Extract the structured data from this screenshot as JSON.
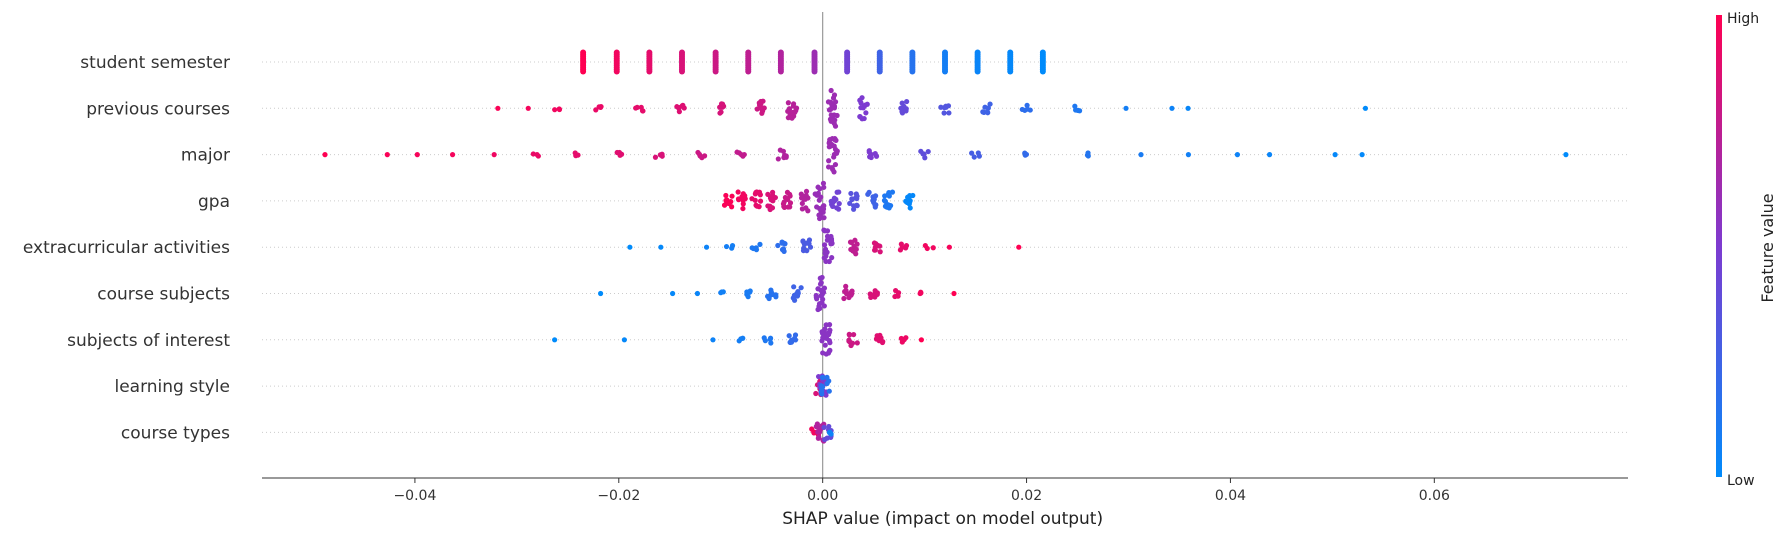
{
  "chart_data": {
    "type": "scatter",
    "subtype": "shap-beeswarm",
    "xlabel": "SHAP value (impact on model output)",
    "xlim": [
      -0.055,
      0.079
    ],
    "xticks": [
      {
        "value": -0.04,
        "label": "−0.04"
      },
      {
        "value": -0.02,
        "label": "−0.02"
      },
      {
        "value": 0.0,
        "label": "0.00"
      },
      {
        "value": 0.02,
        "label": "0.02"
      },
      {
        "value": 0.04,
        "label": "0.04"
      },
      {
        "value": 0.06,
        "label": "0.06"
      }
    ],
    "features": [
      "student semester",
      "previous courses",
      "major",
      "gpa",
      "extracurricular activities",
      "course subjects",
      "subjects of interest",
      "learning style",
      "course types"
    ],
    "colorbar": {
      "title": "Feature value",
      "high_label": "High",
      "low_label": "Low",
      "high_color": "#ff0052",
      "low_color": "#008bfb"
    },
    "colors": {
      "low": "#008bfb",
      "high": "#ff0052",
      "zero_line": "#999999",
      "row_grid": "#cccccc"
    },
    "series": [
      {
        "feature": "student semester",
        "points": [
          {
            "shap": -0.0235,
            "value": 1.0,
            "spread": 0.0
          },
          {
            "shap": -0.0202,
            "value": 0.95,
            "spread": 0.0
          },
          {
            "shap": -0.017,
            "value": 0.9,
            "spread": 0.0
          },
          {
            "shap": -0.0138,
            "value": 0.85,
            "spread": 0.0
          },
          {
            "shap": -0.0105,
            "value": 0.8,
            "spread": 0.0
          },
          {
            "shap": -0.0073,
            "value": 0.75,
            "spread": 0.0
          },
          {
            "shap": -0.0041,
            "value": 0.7,
            "spread": 0.0
          },
          {
            "shap": -0.0008,
            "value": 0.62,
            "spread": 0.0
          },
          {
            "shap": 0.0024,
            "value": 0.45,
            "spread": 0.0
          },
          {
            "shap": 0.0056,
            "value": 0.25,
            "spread": 0.0
          },
          {
            "shap": 0.0088,
            "value": 0.15,
            "spread": 0.0
          },
          {
            "shap": 0.012,
            "value": 0.08,
            "spread": 0.0
          },
          {
            "shap": 0.0152,
            "value": 0.04,
            "spread": 0.0
          },
          {
            "shap": 0.0184,
            "value": 0.02,
            "spread": 0.0
          },
          {
            "shap": 0.0216,
            "value": 0.0,
            "spread": 0.0
          }
        ]
      },
      {
        "feature": "previous courses",
        "points": [
          {
            "shap": -0.032,
            "value": 0.98,
            "spread": 0.0
          },
          {
            "shap": -0.029,
            "value": 0.96,
            "spread": 0.0
          },
          {
            "shap": -0.026,
            "value": 0.95,
            "spread": 0.1
          },
          {
            "shap": -0.022,
            "value": 0.92,
            "spread": 0.15
          },
          {
            "shap": -0.018,
            "value": 0.9,
            "spread": 0.2
          },
          {
            "shap": -0.014,
            "value": 0.87,
            "spread": 0.25
          },
          {
            "shap": -0.01,
            "value": 0.84,
            "spread": 0.3
          },
          {
            "shap": -0.006,
            "value": 0.8,
            "spread": 0.4
          },
          {
            "shap": -0.003,
            "value": 0.72,
            "spread": 0.6
          },
          {
            "shap": 0.001,
            "value": 0.62,
            "spread": 1.0
          },
          {
            "shap": 0.004,
            "value": 0.5,
            "spread": 0.6
          },
          {
            "shap": 0.008,
            "value": 0.4,
            "spread": 0.4
          },
          {
            "shap": 0.012,
            "value": 0.33,
            "spread": 0.3
          },
          {
            "shap": 0.016,
            "value": 0.25,
            "spread": 0.25
          },
          {
            "shap": 0.02,
            "value": 0.18,
            "spread": 0.2
          },
          {
            "shap": 0.025,
            "value": 0.12,
            "spread": 0.15
          },
          {
            "shap": 0.03,
            "value": 0.08,
            "spread": 0.0
          },
          {
            "shap": 0.034,
            "value": 0.05,
            "spread": 0.0
          },
          {
            "shap": 0.036,
            "value": 0.03,
            "spread": 0.0
          },
          {
            "shap": 0.053,
            "value": 0.0,
            "spread": 0.0
          }
        ]
      },
      {
        "feature": "major",
        "points": [
          {
            "shap": -0.049,
            "value": 1.0,
            "spread": 0.0
          },
          {
            "shap": -0.043,
            "value": 0.98,
            "spread": 0.0
          },
          {
            "shap": -0.04,
            "value": 0.97,
            "spread": 0.0
          },
          {
            "shap": -0.036,
            "value": 0.96,
            "spread": 0.0
          },
          {
            "shap": -0.032,
            "value": 0.94,
            "spread": 0.0
          },
          {
            "shap": -0.028,
            "value": 0.92,
            "spread": 0.1
          },
          {
            "shap": -0.024,
            "value": 0.9,
            "spread": 0.1
          },
          {
            "shap": -0.02,
            "value": 0.88,
            "spread": 0.15
          },
          {
            "shap": -0.016,
            "value": 0.85,
            "spread": 0.15
          },
          {
            "shap": -0.012,
            "value": 0.8,
            "spread": 0.2
          },
          {
            "shap": -0.008,
            "value": 0.76,
            "spread": 0.2
          },
          {
            "shap": -0.004,
            "value": 0.7,
            "spread": 0.25
          },
          {
            "shap": 0.001,
            "value": 0.62,
            "spread": 1.0
          },
          {
            "shap": 0.005,
            "value": 0.5,
            "spread": 0.3
          },
          {
            "shap": 0.01,
            "value": 0.38,
            "spread": 0.2
          },
          {
            "shap": 0.015,
            "value": 0.28,
            "spread": 0.15
          },
          {
            "shap": 0.02,
            "value": 0.2,
            "spread": 0.1
          },
          {
            "shap": 0.026,
            "value": 0.14,
            "spread": 0.1
          },
          {
            "shap": 0.031,
            "value": 0.1,
            "spread": 0.0
          },
          {
            "shap": 0.036,
            "value": 0.07,
            "spread": 0.0
          },
          {
            "shap": 0.041,
            "value": 0.05,
            "spread": 0.0
          },
          {
            "shap": 0.044,
            "value": 0.04,
            "spread": 0.0
          },
          {
            "shap": 0.05,
            "value": 0.02,
            "spread": 0.0
          },
          {
            "shap": 0.053,
            "value": 0.01,
            "spread": 0.0
          },
          {
            "shap": 0.0725,
            "value": 0.0,
            "spread": 0.0
          }
        ]
      },
      {
        "feature": "gpa",
        "points": [
          {
            "shap": -0.0093,
            "value": 0.98,
            "spread": 0.35
          },
          {
            "shap": -0.008,
            "value": 0.95,
            "spread": 0.5
          },
          {
            "shap": -0.0065,
            "value": 0.9,
            "spread": 0.5
          },
          {
            "shap": -0.005,
            "value": 0.85,
            "spread": 0.5
          },
          {
            "shap": -0.0035,
            "value": 0.78,
            "spread": 0.5
          },
          {
            "shap": -0.0018,
            "value": 0.7,
            "spread": 0.55
          },
          {
            "shap": -0.0003,
            "value": 0.6,
            "spread": 1.0
          },
          {
            "shap": 0.0012,
            "value": 0.45,
            "spread": 0.55
          },
          {
            "shap": 0.003,
            "value": 0.35,
            "spread": 0.5
          },
          {
            "shap": 0.0048,
            "value": 0.25,
            "spread": 0.5
          },
          {
            "shap": 0.0065,
            "value": 0.12,
            "spread": 0.5
          },
          {
            "shap": 0.0085,
            "value": 0.02,
            "spread": 0.45
          }
        ]
      },
      {
        "feature": "extracurricular activities",
        "points": [
          {
            "shap": -0.0185,
            "value": 0.0,
            "spread": 0.0
          },
          {
            "shap": -0.0155,
            "value": 0.02,
            "spread": 0.0
          },
          {
            "shap": -0.011,
            "value": 0.05,
            "spread": 0.0
          },
          {
            "shap": -0.009,
            "value": 0.08,
            "spread": 0.1
          },
          {
            "shap": -0.0065,
            "value": 0.12,
            "spread": 0.2
          },
          {
            "shap": -0.004,
            "value": 0.18,
            "spread": 0.3
          },
          {
            "shap": -0.0015,
            "value": 0.3,
            "spread": 0.4
          },
          {
            "shap": 0.0005,
            "value": 0.55,
            "spread": 1.0
          },
          {
            "shap": 0.003,
            "value": 0.75,
            "spread": 0.4
          },
          {
            "shap": 0.0055,
            "value": 0.85,
            "spread": 0.3
          },
          {
            "shap": 0.008,
            "value": 0.9,
            "spread": 0.2
          },
          {
            "shap": 0.0105,
            "value": 0.95,
            "spread": 0.1
          },
          {
            "shap": 0.0125,
            "value": 0.97,
            "spread": 0.0
          },
          {
            "shap": 0.0188,
            "value": 1.0,
            "spread": 0.0
          }
        ]
      },
      {
        "feature": "course subjects",
        "points": [
          {
            "shap": -0.0222,
            "value": 0.0,
            "spread": 0.0
          },
          {
            "shap": -0.0148,
            "value": 0.02,
            "spread": 0.0
          },
          {
            "shap": -0.0125,
            "value": 0.04,
            "spread": 0.0
          },
          {
            "shap": -0.01,
            "value": 0.07,
            "spread": 0.1
          },
          {
            "shap": -0.0075,
            "value": 0.1,
            "spread": 0.2
          },
          {
            "shap": -0.005,
            "value": 0.15,
            "spread": 0.3
          },
          {
            "shap": -0.0025,
            "value": 0.25,
            "spread": 0.4
          },
          {
            "shap": -0.0002,
            "value": 0.55,
            "spread": 1.0
          },
          {
            "shap": 0.0025,
            "value": 0.75,
            "spread": 0.4
          },
          {
            "shap": 0.005,
            "value": 0.85,
            "spread": 0.3
          },
          {
            "shap": 0.0075,
            "value": 0.9,
            "spread": 0.2
          },
          {
            "shap": 0.01,
            "value": 0.95,
            "spread": 0.1
          },
          {
            "shap": 0.0128,
            "value": 1.0,
            "spread": 0.0
          }
        ]
      },
      {
        "feature": "subjects of interest",
        "points": [
          {
            "shap": -0.0265,
            "value": 0.0,
            "spread": 0.0
          },
          {
            "shap": -0.0196,
            "value": 0.02,
            "spread": 0.0
          },
          {
            "shap": -0.0108,
            "value": 0.05,
            "spread": 0.0
          },
          {
            "shap": -0.008,
            "value": 0.08,
            "spread": 0.1
          },
          {
            "shap": -0.0055,
            "value": 0.12,
            "spread": 0.2
          },
          {
            "shap": -0.003,
            "value": 0.2,
            "spread": 0.3
          },
          {
            "shap": 0.0003,
            "value": 0.55,
            "spread": 1.0
          },
          {
            "shap": 0.003,
            "value": 0.8,
            "spread": 0.35
          },
          {
            "shap": 0.0055,
            "value": 0.88,
            "spread": 0.25
          },
          {
            "shap": 0.008,
            "value": 0.93,
            "spread": 0.15
          },
          {
            "shap": 0.01,
            "value": 1.0,
            "spread": 0.0
          }
        ]
      },
      {
        "feature": "learning style",
        "points": [
          {
            "shap": -0.0003,
            "value": 0.85,
            "spread": 0.5
          },
          {
            "shap": 0.0,
            "value": 0.5,
            "spread": 0.6
          },
          {
            "shap": 0.0003,
            "value": 0.15,
            "spread": 0.5
          }
        ]
      },
      {
        "feature": "course types",
        "points": [
          {
            "shap": -0.0008,
            "value": 0.95,
            "spread": 0.2
          },
          {
            "shap": -0.0002,
            "value": 0.7,
            "spread": 0.5
          },
          {
            "shap": 0.0004,
            "value": 0.4,
            "spread": 0.4
          },
          {
            "shap": 0.001,
            "value": 0.05,
            "spread": 0.1
          }
        ]
      }
    ]
  }
}
